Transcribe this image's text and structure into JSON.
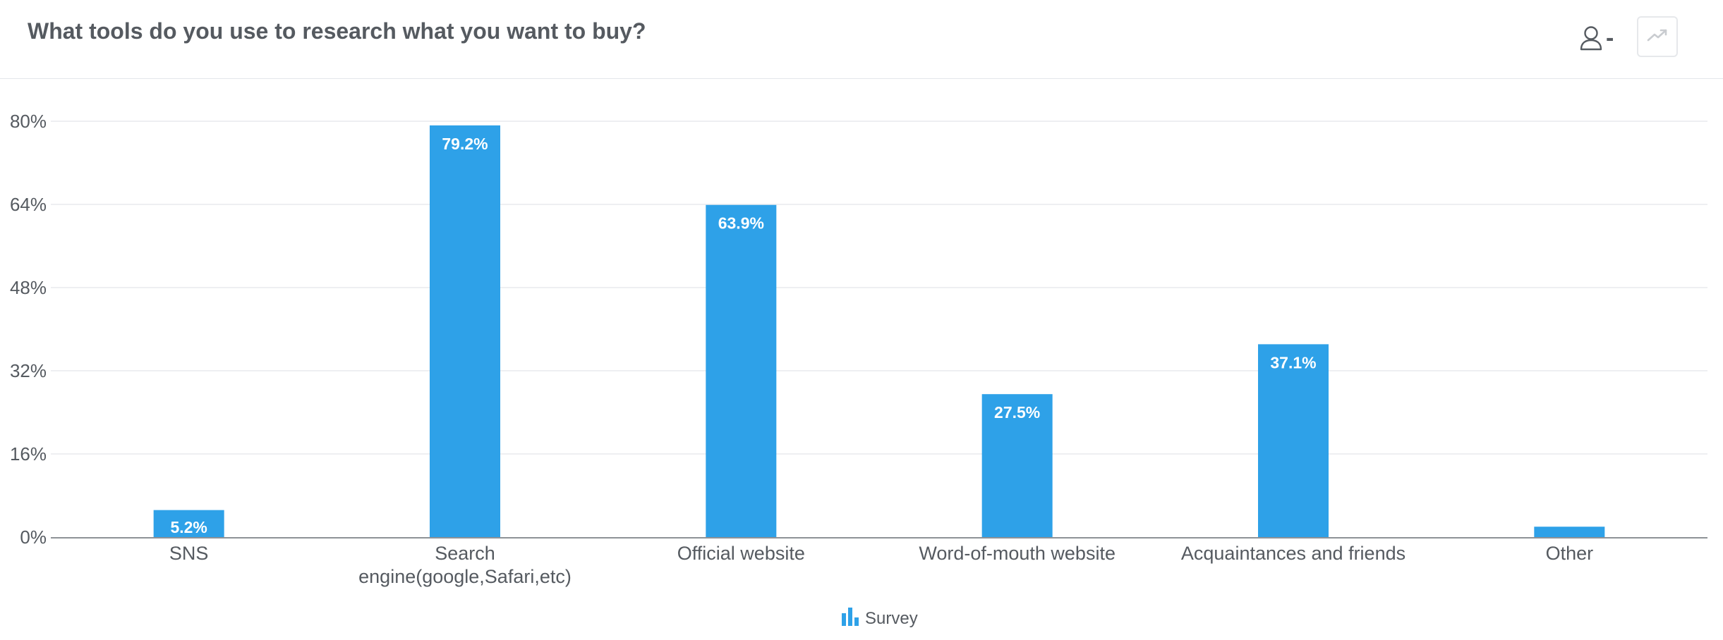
{
  "header": {
    "title": "What tools do you use to research what you want to buy?",
    "user_filter_label": "-",
    "user_icon": "user-icon",
    "trend_icon": "trend-up-icon"
  },
  "colors": {
    "bar": "#2ea1e8",
    "grid": "#e8eaed",
    "axis": "#8e9297"
  },
  "legend": {
    "label": "Survey",
    "icon": "bar-chart-icon"
  },
  "chart_data": {
    "type": "bar",
    "categories": [
      "SNS",
      "Search\nengine(google,Safari,etc)",
      "Official website",
      "Word-of-mouth website",
      "Acquaintances and friends",
      "Other"
    ],
    "series": [
      {
        "name": "Survey",
        "values": [
          5.2,
          79.2,
          63.9,
          27.5,
          37.1,
          2.0
        ]
      }
    ],
    "data_labels": [
      "5.2%",
      "79.2%",
      "63.9%",
      "27.5%",
      "37.1%",
      ""
    ],
    "ylim": [
      0,
      80
    ],
    "yticks": [
      0,
      16,
      32,
      48,
      64,
      80
    ],
    "ytick_labels": [
      "0%",
      "16%",
      "32%",
      "48%",
      "64%",
      "80%"
    ],
    "title": "What tools do you use to research what you want to buy?",
    "xlabel": "",
    "ylabel": "",
    "grid": true,
    "legend_position": "bottom-center"
  }
}
